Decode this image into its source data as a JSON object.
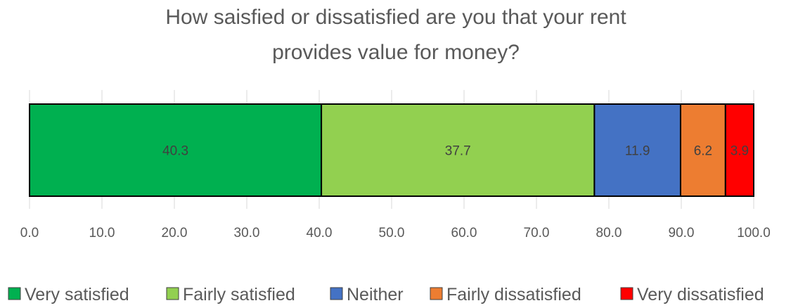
{
  "chart_data": {
    "type": "bar",
    "orientation": "horizontal-stacked",
    "title_lines": [
      "How saisfied or dissatisfied are you that your rent",
      "provides value for money?"
    ],
    "xlabel": "",
    "ylabel": "",
    "xlim": [
      0,
      100
    ],
    "ticks": [
      "0.0",
      "10.0",
      "20.0",
      "30.0",
      "40.0",
      "50.0",
      "60.0",
      "70.0",
      "80.0",
      "90.0",
      "100.0"
    ],
    "grid": true,
    "legend_position": "bottom",
    "series": [
      {
        "name": "Very satisfied",
        "value": 40.3,
        "label": "40.3",
        "color": "#00B050"
      },
      {
        "name": "Fairly satisfied",
        "value": 37.7,
        "label": "37.7",
        "color": "#92D050"
      },
      {
        "name": "Neither",
        "value": 11.9,
        "label": "11.9",
        "color": "#4472C4"
      },
      {
        "name": "Fairly dissatisfied",
        "value": 6.2,
        "label": "6.2",
        "color": "#ED7D31"
      },
      {
        "name": "Very dissatisfied",
        "value": 3.9,
        "label": "3.9",
        "color": "#FF0000"
      }
    ]
  }
}
